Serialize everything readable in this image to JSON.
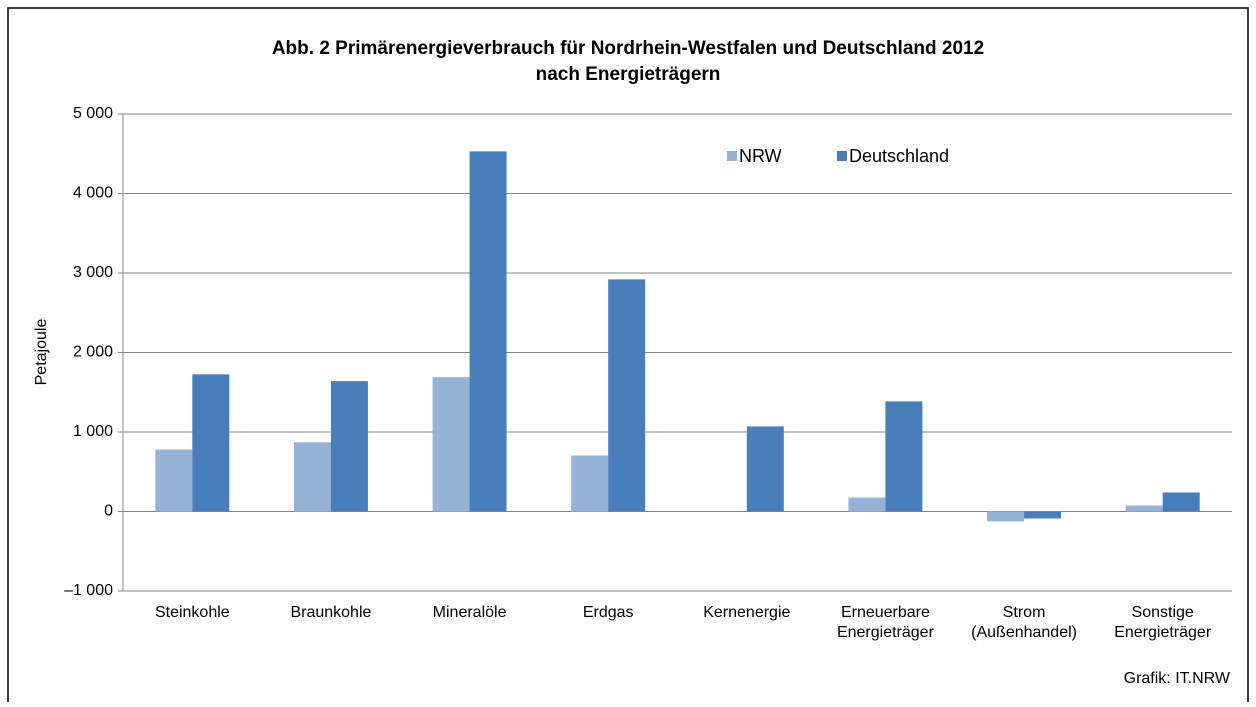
{
  "chart_data": {
    "type": "bar",
    "title": "Abb. 2 Primärenergieverbrauch für Nordrhein-Westfalen und Deutschland 2012",
    "subtitle": "nach Energieträgern",
    "ylabel": "Petajoule",
    "source": "Grafik: IT.NRW",
    "categories": [
      "Steinkohle",
      "Braunkohle",
      "Mineralöle",
      "Erdgas",
      "Kernenergie",
      "Erneuerbare\nEnergieträger",
      "Strom\n(Außenhandel)",
      "Sonstige\nEnergieträger"
    ],
    "series": [
      {
        "name": "NRW",
        "color": "#95b3d7",
        "values": [
          780,
          870,
          1690,
          705,
          0,
          176,
          -125,
          76
        ]
      },
      {
        "name": "Deutschland",
        "color": "#4a7ebb",
        "values": [
          1725,
          1640,
          4530,
          2920,
          1070,
          1385,
          -88,
          240
        ]
      }
    ],
    "ylim": [
      -1000,
      5000
    ],
    "yticks": [
      {
        "value": -1000,
        "label": "–1 000"
      },
      0,
      {
        "value": 1000,
        "label": "1 000"
      },
      {
        "value": 2000,
        "label": "2 000"
      },
      {
        "value": 3000,
        "label": "3 000"
      },
      {
        "value": 4000,
        "label": "4 000"
      },
      {
        "value": 5000,
        "label": "5 000"
      }
    ],
    "grid": true,
    "legend": "top-right"
  }
}
